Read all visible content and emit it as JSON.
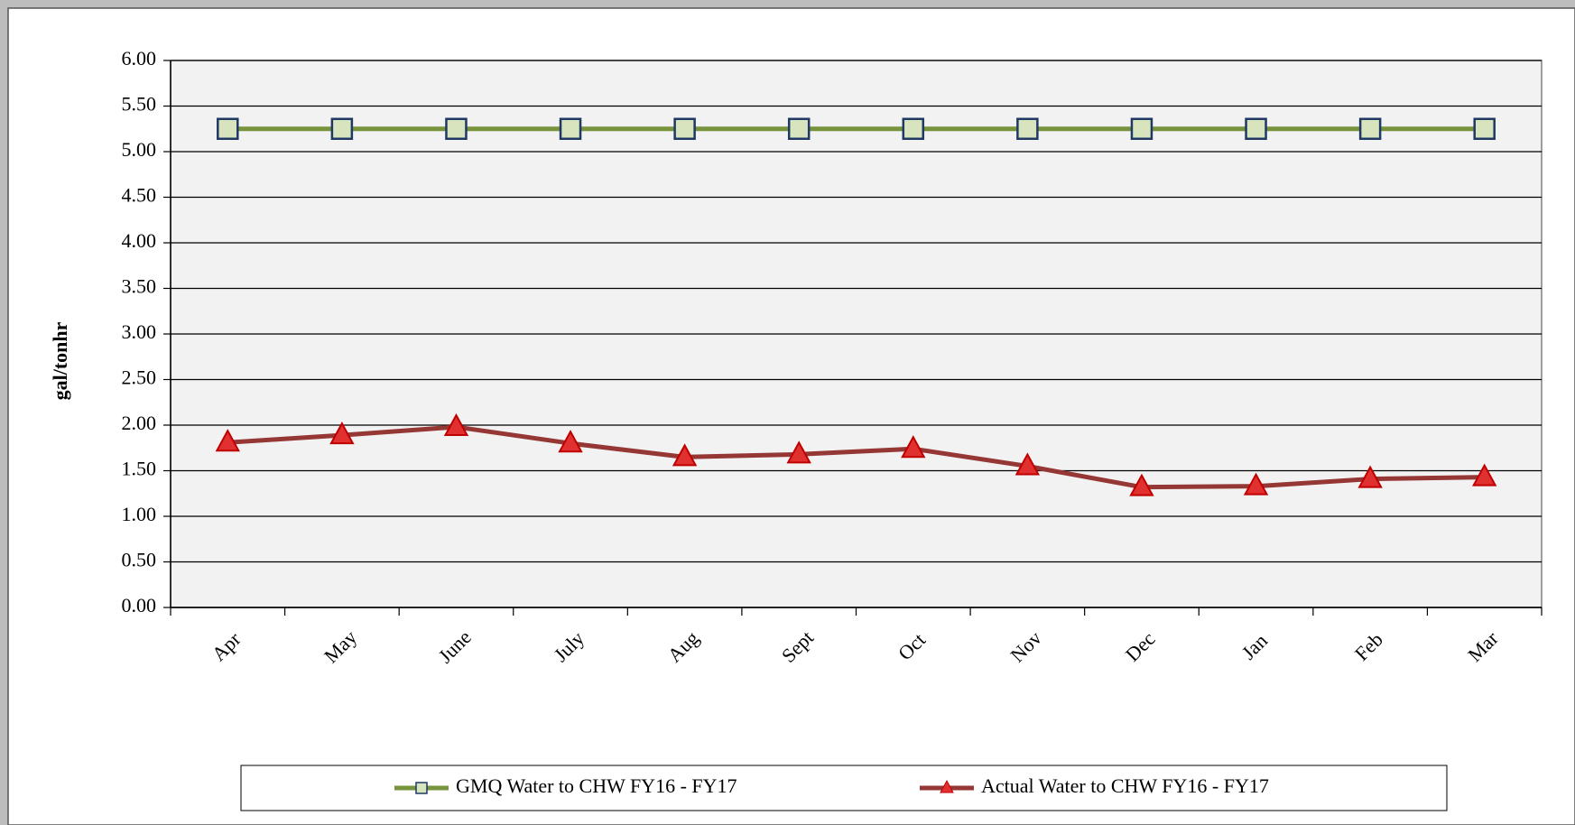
{
  "chart_data": {
    "type": "line",
    "y_label": "gal/tonhr",
    "categories": [
      "Apr",
      "May",
      "June",
      "July",
      "Aug",
      "Sept",
      "Oct",
      "Nov",
      "Dec",
      "Jan",
      "Feb",
      "Mar"
    ],
    "series": [
      {
        "name": "GMQ Water to CHW FY16 - FY17",
        "color": "#77933c",
        "marker": "square",
        "marker_fill": "#d7e4bd",
        "marker_stroke": "#1f3864",
        "values": [
          5.25,
          5.25,
          5.25,
          5.25,
          5.25,
          5.25,
          5.25,
          5.25,
          5.25,
          5.25,
          5.25,
          5.25
        ]
      },
      {
        "name": "Actual Water to CHW FY16 - FY17",
        "color": "#953735",
        "marker": "triangle",
        "marker_fill": "#e03030",
        "marker_stroke": "#c00000",
        "values": [
          1.81,
          1.89,
          1.98,
          1.8,
          1.65,
          1.68,
          1.74,
          1.55,
          1.32,
          1.33,
          1.41,
          1.43
        ]
      }
    ],
    "ylim": [
      0,
      6
    ],
    "yticks": [
      {
        "value": 0,
        "label": "0.00"
      },
      {
        "value": 0.5,
        "label": "0.50"
      },
      {
        "value": 1,
        "label": "1.00"
      },
      {
        "value": 1.5,
        "label": "1.50"
      },
      {
        "value": 2,
        "label": "2.00"
      },
      {
        "value": 2.5,
        "label": "2.50"
      },
      {
        "value": 3,
        "label": "3.00"
      },
      {
        "value": 3.5,
        "label": "3.50"
      },
      {
        "value": 4,
        "label": "4.00"
      },
      {
        "value": 4.5,
        "label": "4.50"
      },
      {
        "value": 5,
        "label": "5.00"
      },
      {
        "value": 5.5,
        "label": "5.50"
      },
      {
        "value": 6,
        "label": "6.00"
      }
    ],
    "grid": true,
    "legend": "bottom"
  }
}
